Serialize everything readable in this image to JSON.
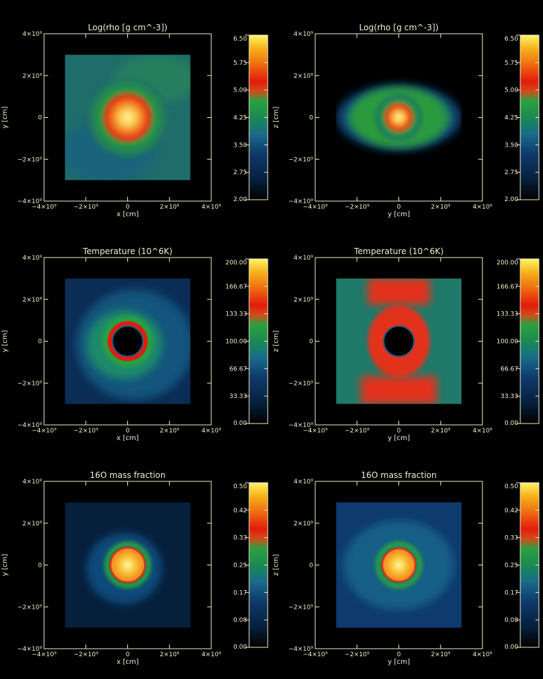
{
  "chart_data": [
    {
      "type": "heatmap",
      "title": "Log(rho [g cm^-3])",
      "xlabel": "x [cm]",
      "ylabel": "y [cm]",
      "xlim": [
        -4000000000.0,
        4000000000.0
      ],
      "ylim": [
        -4000000000.0,
        4000000000.0
      ],
      "x_ticks": [
        "−4×10⁹",
        "−2×10⁹",
        "0",
        "2×10⁹",
        "4×10⁹"
      ],
      "y_ticks": [
        "−4×10⁹",
        "−2×10⁹",
        "0",
        "2×10⁹",
        "4×10⁹"
      ],
      "colorbar_range": [
        2.0,
        6.5
      ],
      "colorbar_ticks": [
        "6.50",
        "5.75",
        "5.00",
        "4.25",
        "3.50",
        "2.75",
        "2.00"
      ],
      "field": "density",
      "projection": "x-y",
      "data_extent": [
        -3000000000.0,
        3000000000.0
      ]
    },
    {
      "type": "heatmap",
      "title": "Log(rho [g cm^-3])",
      "xlabel": "y [cm]",
      "ylabel": "z [cm]",
      "xlim": [
        -4000000000.0,
        4000000000.0
      ],
      "ylim": [
        -4000000000.0,
        4000000000.0
      ],
      "x_ticks": [
        "−4×10⁹",
        "−2×10⁹",
        "0",
        "2×10⁹",
        "4×10⁹"
      ],
      "y_ticks": [
        "−4×10⁹",
        "−2×10⁹",
        "0",
        "2×10⁹",
        "4×10⁹"
      ],
      "colorbar_range": [
        2.0,
        6.5
      ],
      "colorbar_ticks": [
        "6.50",
        "5.75",
        "5.00",
        "4.25",
        "3.50",
        "2.75",
        "2.00"
      ],
      "field": "density",
      "projection": "y-z",
      "data_extent": [
        -3000000000.0,
        3000000000.0
      ]
    },
    {
      "type": "heatmap",
      "title": "Temperature (10^6K)",
      "xlabel": "x [cm]",
      "ylabel": "y [cm]",
      "xlim": [
        -4000000000.0,
        4000000000.0
      ],
      "ylim": [
        -4000000000.0,
        4000000000.0
      ],
      "x_ticks": [
        "−4×10⁹",
        "−2×10⁹",
        "0",
        "2×10⁹",
        "4×10⁹"
      ],
      "y_ticks": [
        "−4×10⁹",
        "−2×10⁹",
        "0",
        "2×10⁹",
        "4×10⁹"
      ],
      "colorbar_range": [
        0.0,
        200.0
      ],
      "colorbar_ticks": [
        "200.00",
        "166.67",
        "133.33",
        "100.00",
        "66.67",
        "33.33",
        "0.00"
      ],
      "field": "temperature",
      "projection": "x-y",
      "data_extent": [
        -3000000000.0,
        3000000000.0
      ]
    },
    {
      "type": "heatmap",
      "title": "Temperature (10^6K)",
      "xlabel": "y [cm]",
      "ylabel": "z [cm]",
      "xlim": [
        -4000000000.0,
        4000000000.0
      ],
      "ylim": [
        -4000000000.0,
        4000000000.0
      ],
      "x_ticks": [
        "−4×10⁹",
        "−2×10⁹",
        "0",
        "2×10⁹",
        "4×10⁹"
      ],
      "y_ticks": [
        "−4×10⁹",
        "−2×10⁹",
        "0",
        "2×10⁹",
        "4×10⁹"
      ],
      "colorbar_range": [
        0.0,
        200.0
      ],
      "colorbar_ticks": [
        "200.00",
        "166.67",
        "133.33",
        "100.00",
        "66.67",
        "33.33",
        "0.00"
      ],
      "field": "temperature",
      "projection": "y-z",
      "data_extent": [
        -3000000000.0,
        3000000000.0
      ]
    },
    {
      "type": "heatmap",
      "title": "16O mass fraction",
      "xlabel": "x [cm]",
      "ylabel": "y [cm]",
      "xlim": [
        -4000000000.0,
        4000000000.0
      ],
      "ylim": [
        -4000000000.0,
        4000000000.0
      ],
      "x_ticks": [
        "−4×10⁹",
        "−2×10⁹",
        "0",
        "2×10⁹",
        "4×10⁹"
      ],
      "y_ticks": [
        "−4×10⁹",
        "−2×10⁹",
        "0",
        "2×10⁹",
        "4×10⁹"
      ],
      "colorbar_range": [
        0.0,
        0.5
      ],
      "colorbar_ticks": [
        "0.50",
        "0.42",
        "0.33",
        "0.25",
        "0.17",
        "0.08",
        "0.00"
      ],
      "field": "oxygen",
      "projection": "x-y",
      "data_extent": [
        -3000000000.0,
        3000000000.0
      ]
    },
    {
      "type": "heatmap",
      "title": "16O mass fraction",
      "xlabel": "y [cm]",
      "ylabel": "z [cm]",
      "xlim": [
        -4000000000.0,
        4000000000.0
      ],
      "ylim": [
        -4000000000.0,
        4000000000.0
      ],
      "x_ticks": [
        "−4×10⁹",
        "−2×10⁹",
        "0",
        "2×10⁹",
        "4×10⁹"
      ],
      "y_ticks": [
        "−4×10⁹",
        "−2×10⁹",
        "0",
        "2×10⁹",
        "4×10⁹"
      ],
      "colorbar_range": [
        0.0,
        0.5
      ],
      "colorbar_ticks": [
        "0.50",
        "0.42",
        "0.33",
        "0.25",
        "0.17",
        "0.08",
        "0.00"
      ],
      "field": "oxygen",
      "projection": "y-z",
      "data_extent": [
        -3000000000.0,
        3000000000.0
      ]
    }
  ],
  "colors": {
    "axis": "#f2f0c8",
    "background": "#000000"
  }
}
